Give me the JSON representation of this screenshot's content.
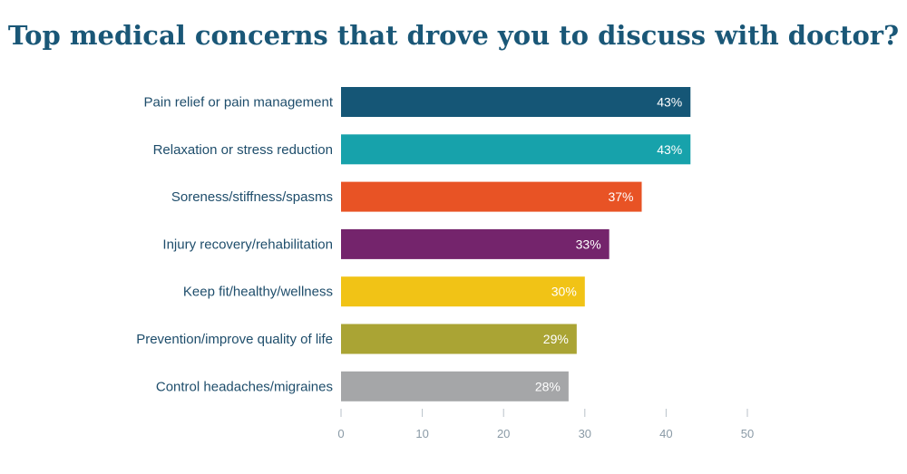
{
  "chart_data": {
    "type": "bar",
    "orientation": "horizontal",
    "title": "Top medical concerns that drove you to discuss with doctor?",
    "categories": [
      "Pain relief or pain management",
      "Relaxation or stress reduction",
      "Soreness/stiffness/spasms",
      "Injury recovery/rehabilitation",
      "Keep fit/healthy/wellness",
      "Prevention/improve quality of life",
      "Control headaches/migraines"
    ],
    "values": [
      43,
      43,
      37,
      33,
      30,
      29,
      28
    ],
    "value_labels": [
      "43%",
      "43%",
      "37%",
      "33%",
      "30%",
      "29%",
      "28%"
    ],
    "colors": [
      "#155676",
      "#17a2ab",
      "#e85325",
      "#74246c",
      "#f1c316",
      "#aaa434",
      "#a5a6a8"
    ],
    "xlim": [
      0,
      50
    ],
    "xticks": [
      0,
      10,
      20,
      30,
      40,
      50
    ],
    "xlabel": "",
    "ylabel": "",
    "grid": false
  }
}
